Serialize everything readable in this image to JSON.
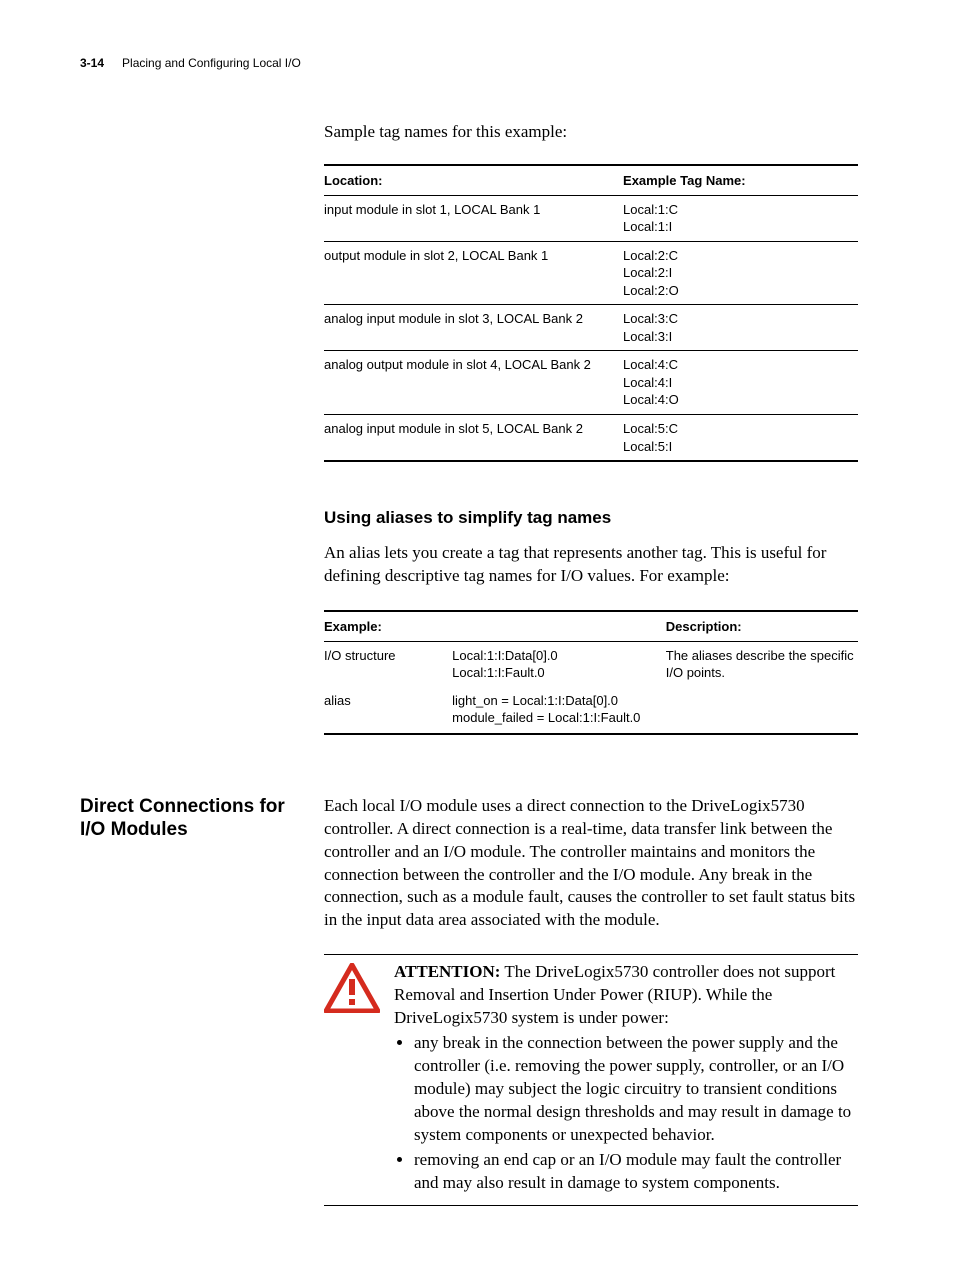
{
  "header": {
    "page_number": "3-14",
    "title": "Placing and Configuring Local I/O"
  },
  "intro": "Sample tag names for this example:",
  "table1": {
    "headers": [
      "Location:",
      "Example Tag Name:"
    ],
    "rows": [
      [
        "input module in slot 1, LOCAL Bank 1",
        "Local:1:C\nLocal:1:I"
      ],
      [
        "output module in slot 2, LOCAL Bank 1",
        "Local:2:C\nLocal:2:I\nLocal:2:O"
      ],
      [
        "analog input module in slot 3, LOCAL Bank 2",
        "Local:3:C\nLocal:3:I"
      ],
      [
        "analog output module in slot 4, LOCAL Bank 2",
        "Local:4:C\nLocal:4:I\nLocal:4:O"
      ],
      [
        "analog input module in slot 5, LOCAL Bank 2",
        "Local:5:C\nLocal:5:I"
      ]
    ],
    "col_widths": [
      "56%",
      "44%"
    ]
  },
  "subheading1": "Using aliases to simplify tag names",
  "para1": "An alias lets you create a tag that represents another tag. This is useful for defining descriptive tag names for I/O values. For example:",
  "table2": {
    "headers": [
      "Example:",
      "",
      "Description:"
    ],
    "rows": [
      [
        "I/O structure",
        "Local:1:I:Data[0].0\nLocal:1:I:Fault.0",
        "The aliases describe the specific I/O points."
      ],
      [
        "alias",
        "light_on = Local:1:I:Data[0].0\nmodule_failed = Local:1:I:Fault.0",
        ""
      ]
    ],
    "col_widths": [
      "24%",
      "40%",
      "36%"
    ]
  },
  "side_heading": "Direct Connections for I/O Modules",
  "para2": "Each local I/O module uses a direct connection to the DriveLogix5730 controller. A direct connection is a real-time, data transfer link between the controller and an I/O module. The controller maintains and monitors the connection between the controller and the I/O module. Any break in the connection, such as a module fault, causes the controller to set fault status bits in the input data area associated with the module.",
  "attention": {
    "label": "ATTENTION:",
    "lead": "The DriveLogix5730 controller does not support Removal and Insertion Under Power (RIUP). While the DriveLogix5730 system is under power:",
    "bullets": [
      "any break in the connection between the power supply and the controller (i.e. removing the power supply, controller, or an I/O module) may subject the logic circuitry to transient conditions above the normal design thresholds and may result in damage to system components or unexpected behavior.",
      "removing an end cap or an I/O module may fault the controller and may also result in damage to system components."
    ],
    "icon_color": "#d52b1e"
  }
}
